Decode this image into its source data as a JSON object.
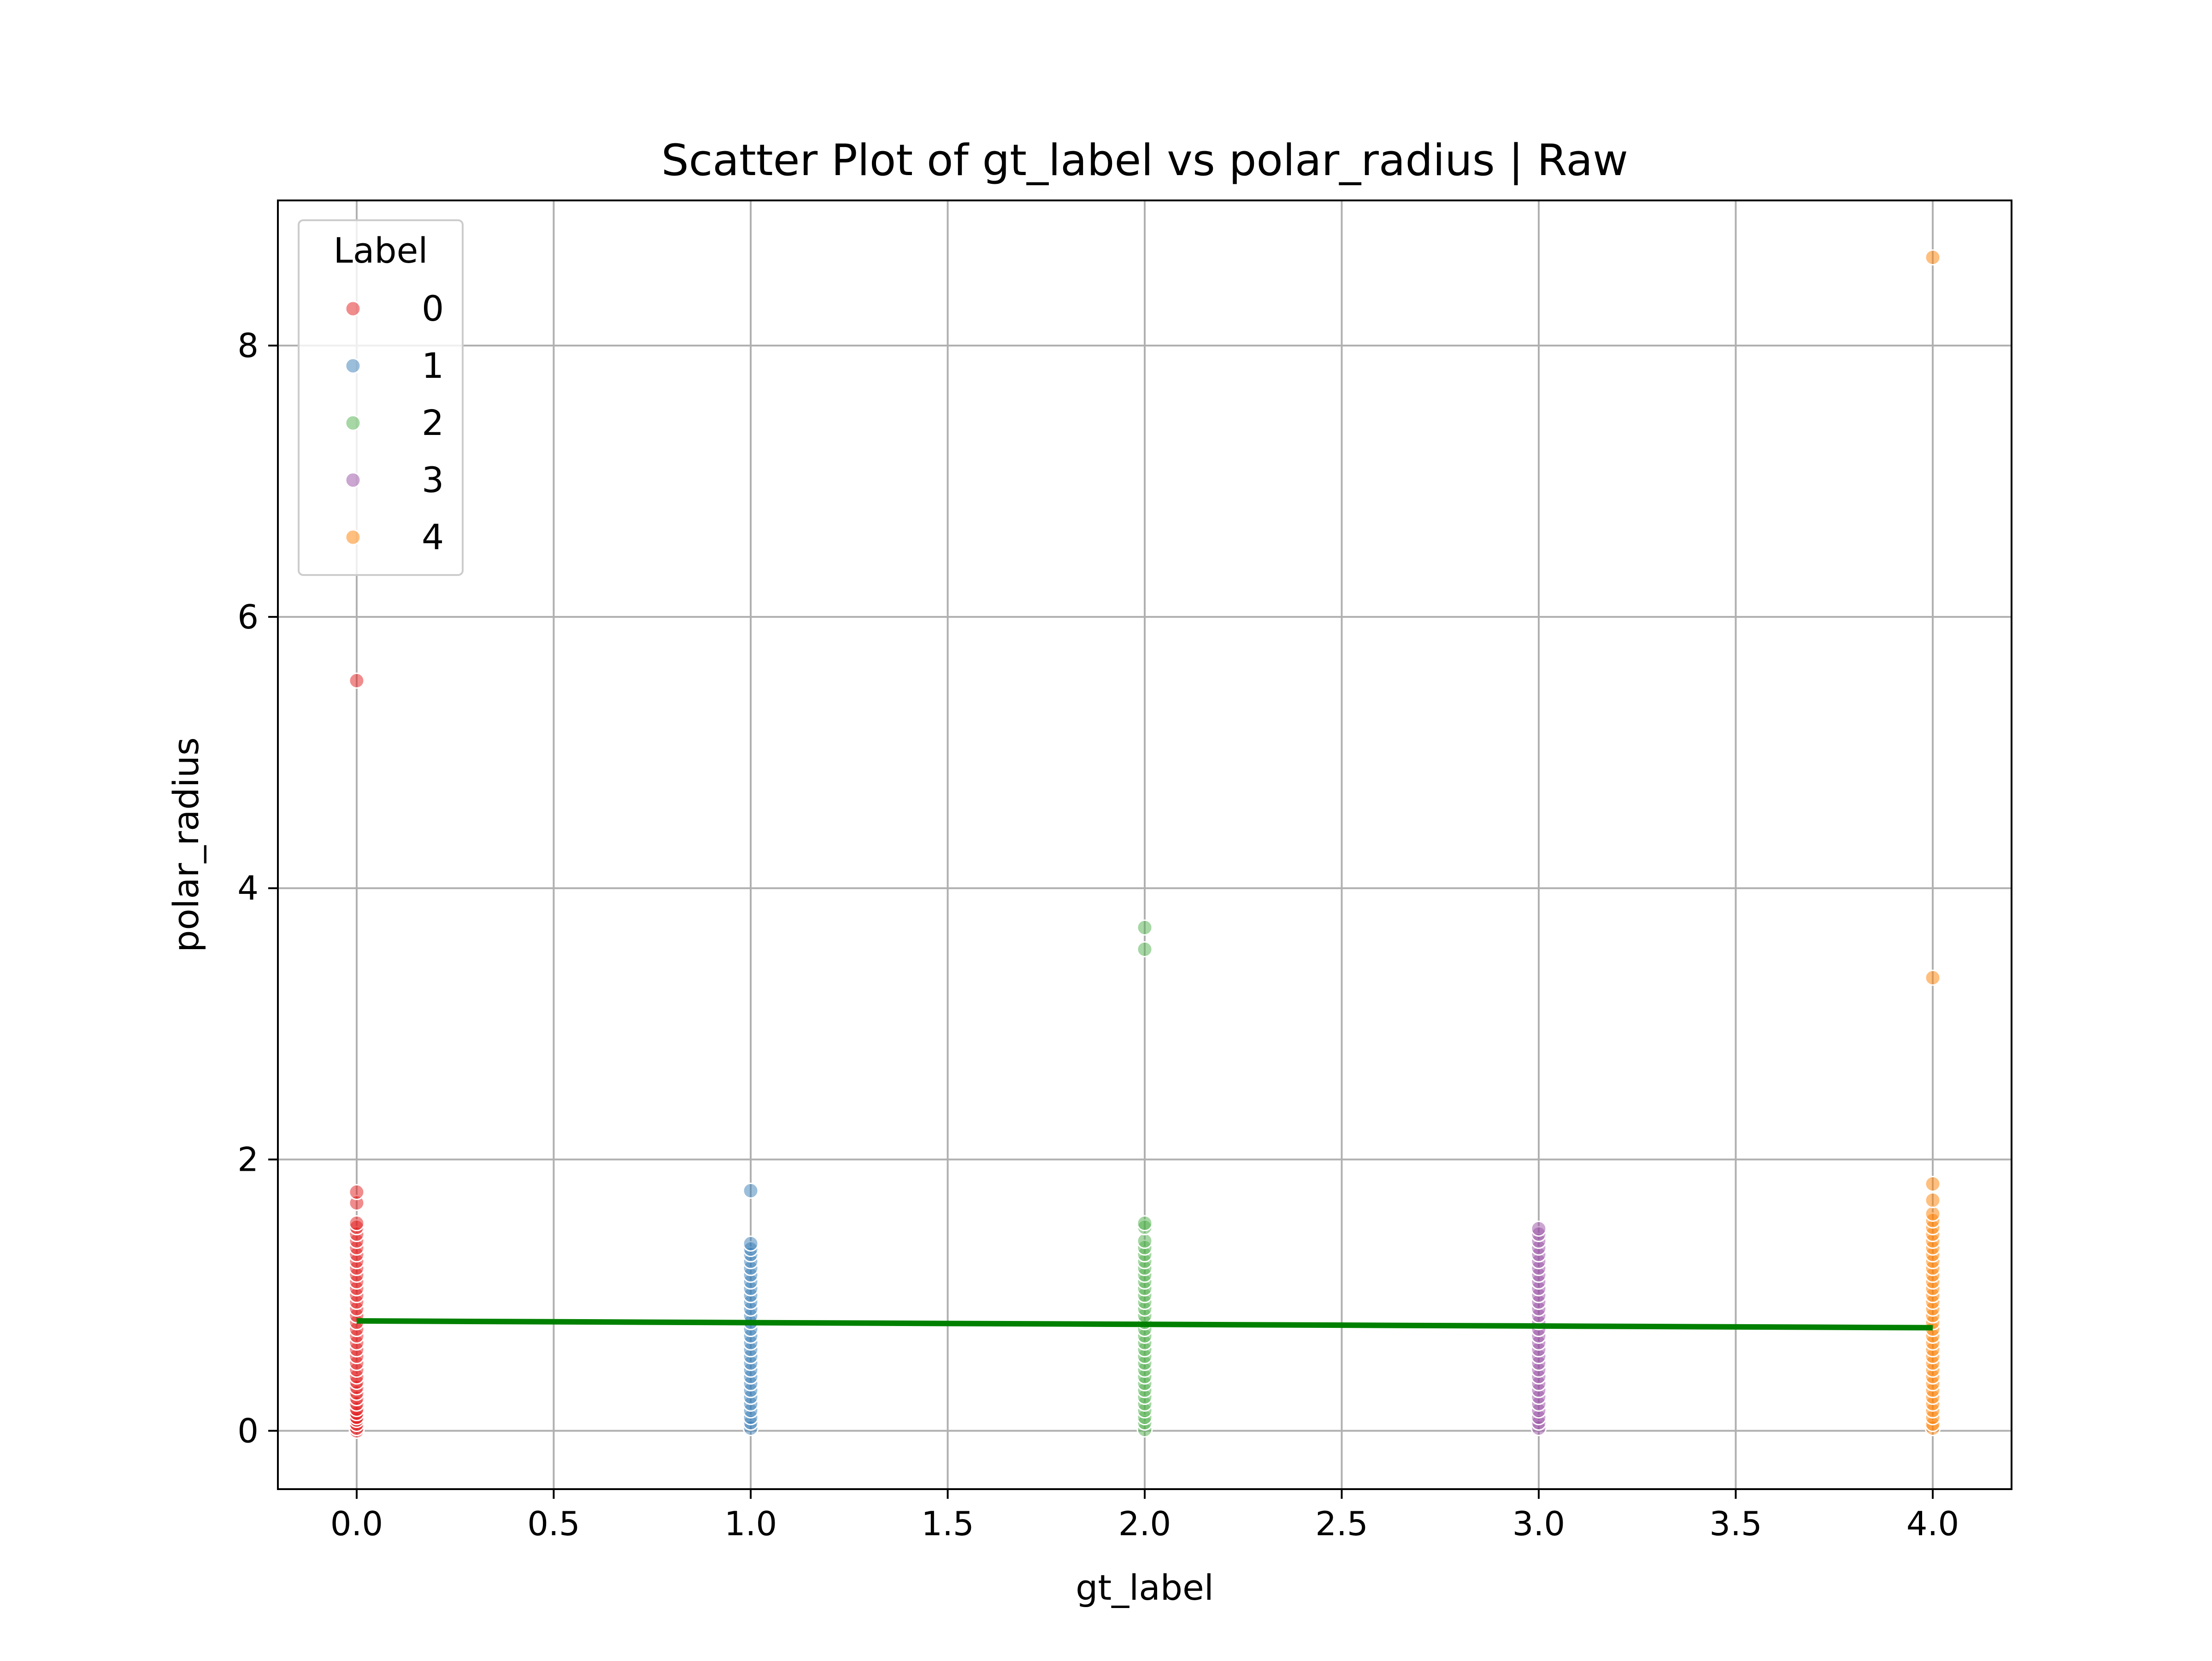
{
  "chart_data": {
    "type": "scatter",
    "title": "Scatter Plot of gt_label vs polar_radius | Raw",
    "xlabel": "gt_label",
    "ylabel": "polar_radius",
    "xlim": [
      -0.2,
      4.2
    ],
    "ylim": [
      -0.43,
      9.07
    ],
    "xticks": [
      0.0,
      0.5,
      1.0,
      1.5,
      2.0,
      2.5,
      3.0,
      3.5,
      4.0
    ],
    "xtick_labels": [
      "0.0",
      "0.5",
      "1.0",
      "1.5",
      "2.0",
      "2.5",
      "3.0",
      "3.5",
      "4.0"
    ],
    "yticks": [
      0,
      2,
      4,
      6,
      8
    ],
    "ytick_labels": [
      "0",
      "2",
      "4",
      "6",
      "8"
    ],
    "grid": true,
    "legend": {
      "title": "Label",
      "position": "top-left",
      "entries": [
        "0",
        "1",
        "2",
        "3",
        "4"
      ]
    },
    "series": [
      {
        "name": "0",
        "color": "#e41a1c",
        "x": 0.0,
        "y": [
          0.0,
          0.02,
          0.05,
          0.08,
          0.1,
          0.13,
          0.16,
          0.2,
          0.24,
          0.28,
          0.32,
          0.36,
          0.4,
          0.45,
          0.5,
          0.55,
          0.6,
          0.65,
          0.7,
          0.75,
          0.8,
          0.85,
          0.9,
          0.95,
          1.0,
          1.05,
          1.1,
          1.15,
          1.2,
          1.25,
          1.3,
          1.35,
          1.4,
          1.45,
          1.5,
          1.53,
          1.68,
          1.76,
          5.53
        ]
      },
      {
        "name": "1",
        "color": "#377eb8",
        "x": 1.0,
        "y": [
          0.02,
          0.06,
          0.1,
          0.15,
          0.2,
          0.25,
          0.3,
          0.35,
          0.4,
          0.45,
          0.5,
          0.55,
          0.6,
          0.65,
          0.7,
          0.75,
          0.8,
          0.85,
          0.9,
          0.95,
          1.0,
          1.05,
          1.1,
          1.15,
          1.2,
          1.25,
          1.3,
          1.34,
          1.38,
          1.77
        ]
      },
      {
        "name": "2",
        "color": "#4daf4a",
        "x": 2.0,
        "y": [
          0.01,
          0.06,
          0.1,
          0.15,
          0.2,
          0.25,
          0.3,
          0.35,
          0.4,
          0.45,
          0.5,
          0.55,
          0.6,
          0.65,
          0.7,
          0.75,
          0.8,
          0.85,
          0.9,
          0.95,
          1.0,
          1.05,
          1.1,
          1.15,
          1.2,
          1.25,
          1.3,
          1.35,
          1.4,
          1.5,
          1.53,
          3.55,
          3.71
        ]
      },
      {
        "name": "3",
        "color": "#984ea3",
        "x": 3.0,
        "y": [
          0.02,
          0.06,
          0.1,
          0.15,
          0.2,
          0.25,
          0.3,
          0.35,
          0.4,
          0.45,
          0.5,
          0.55,
          0.6,
          0.65,
          0.7,
          0.75,
          0.8,
          0.85,
          0.9,
          0.95,
          1.0,
          1.05,
          1.1,
          1.15,
          1.2,
          1.25,
          1.3,
          1.35,
          1.4,
          1.45,
          1.49
        ]
      },
      {
        "name": "4",
        "color": "#ff7f00",
        "x": 4.0,
        "y": [
          0.02,
          0.05,
          0.1,
          0.15,
          0.2,
          0.25,
          0.3,
          0.35,
          0.4,
          0.45,
          0.5,
          0.55,
          0.6,
          0.65,
          0.7,
          0.75,
          0.8,
          0.85,
          0.9,
          0.95,
          1.0,
          1.05,
          1.1,
          1.15,
          1.2,
          1.25,
          1.3,
          1.35,
          1.4,
          1.45,
          1.5,
          1.55,
          1.6,
          1.7,
          1.82,
          3.34,
          8.65
        ]
      }
    ],
    "regression_line": {
      "color": "#008000",
      "x": [
        0.0,
        4.0
      ],
      "y": [
        0.81,
        0.76
      ]
    }
  }
}
